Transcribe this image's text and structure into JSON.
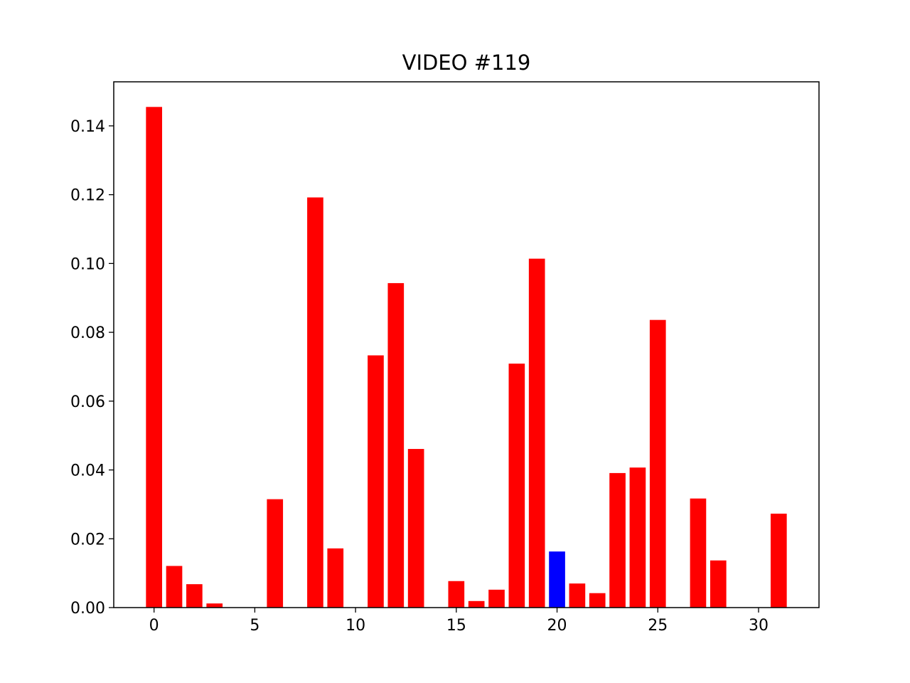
{
  "chart_data": {
    "type": "bar",
    "title": "VIDEO #119",
    "xlabel": "",
    "ylabel": "",
    "x": [
      0,
      1,
      2,
      3,
      4,
      5,
      6,
      7,
      8,
      9,
      10,
      11,
      12,
      13,
      14,
      15,
      16,
      17,
      18,
      19,
      20,
      21,
      22,
      23,
      24,
      25,
      26,
      27,
      28,
      29,
      30,
      31
    ],
    "values": [
      0.1455,
      0.0121,
      0.0068,
      0.0012,
      0,
      0,
      0.0315,
      0,
      0.1192,
      0.0172,
      0,
      0.0733,
      0.0943,
      0.0461,
      0,
      0.0077,
      0.0019,
      0.0052,
      0.0709,
      0.1014,
      0.0163,
      0.007,
      0.0042,
      0.0391,
      0.0407,
      0.0836,
      0,
      0.0317,
      0.0137,
      0,
      0,
      0.0273
    ],
    "colors": [
      "#ff0000",
      "#ff0000",
      "#ff0000",
      "#ff0000",
      "#ff0000",
      "#ff0000",
      "#ff0000",
      "#ff0000",
      "#ff0000",
      "#ff0000",
      "#ff0000",
      "#ff0000",
      "#ff0000",
      "#ff0000",
      "#ff0000",
      "#ff0000",
      "#ff0000",
      "#ff0000",
      "#ff0000",
      "#ff0000",
      "#0000ff",
      "#ff0000",
      "#ff0000",
      "#ff0000",
      "#ff0000",
      "#ff0000",
      "#ff0000",
      "#ff0000",
      "#ff0000",
      "#ff0000",
      "#ff0000",
      "#ff0000"
    ],
    "xlim": [
      -2,
      33
    ],
    "ylim": [
      0,
      0.1528
    ],
    "xticks": [
      0,
      5,
      10,
      15,
      20,
      25,
      30
    ],
    "xtick_labels": [
      "0",
      "5",
      "10",
      "15",
      "20",
      "25",
      "30"
    ],
    "yticks": [
      0,
      0.02,
      0.04,
      0.06,
      0.08,
      0.1,
      0.12,
      0.14
    ],
    "ytick_labels": [
      "0.00",
      "0.02",
      "0.04",
      "0.06",
      "0.08",
      "0.10",
      "0.12",
      "0.14"
    ],
    "grid": false,
    "legend": "none"
  }
}
